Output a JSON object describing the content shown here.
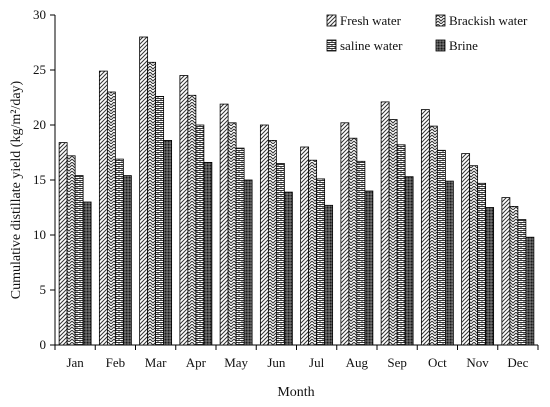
{
  "chart_data": {
    "type": "bar",
    "xlabel": "Month",
    "ylabel": "Cumulative distillate yield (kg/m²/day)",
    "ylim": [
      0,
      30
    ],
    "yticks": [
      0,
      5,
      10,
      15,
      20,
      25,
      30
    ],
    "grid": false,
    "legend_position": "top-right",
    "categories": [
      "Jan",
      "Feb",
      "Mar",
      "Apr",
      "May",
      "Jun",
      "Jul",
      "Aug",
      "Sep",
      "Oct",
      "Nov",
      "Dec"
    ],
    "series": [
      {
        "name": "Fresh water",
        "pattern": "diagonal",
        "values": [
          18.4,
          24.9,
          28.0,
          24.5,
          21.9,
          20.0,
          18.0,
          20.2,
          22.1,
          21.4,
          17.4,
          13.4
        ]
      },
      {
        "name": "Brackish water",
        "pattern": "chevron",
        "values": [
          17.2,
          23.0,
          25.7,
          22.7,
          20.2,
          18.6,
          16.8,
          18.8,
          20.5,
          19.9,
          16.3,
          12.6
        ]
      },
      {
        "name": "saline water",
        "pattern": "brick",
        "values": [
          15.4,
          16.9,
          22.6,
          20.0,
          17.9,
          16.5,
          15.1,
          16.7,
          18.2,
          17.7,
          14.7,
          11.4
        ]
      },
      {
        "name": "Brine",
        "pattern": "dense-dots",
        "values": [
          13.0,
          15.4,
          18.6,
          16.6,
          15.0,
          13.9,
          12.7,
          14.0,
          15.3,
          14.9,
          12.5,
          9.8
        ]
      }
    ]
  }
}
